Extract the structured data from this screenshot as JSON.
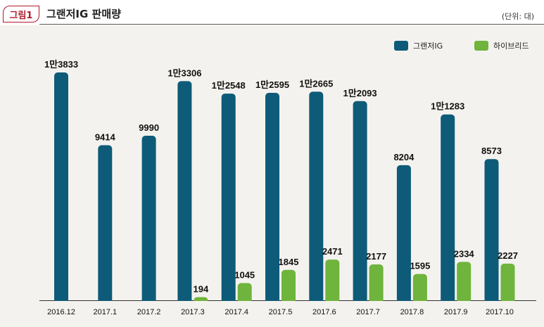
{
  "figure": {
    "badge": "그림1",
    "title": "그랜저IG 판매량",
    "unit": "(단위: 대)"
  },
  "chart_data": {
    "type": "bar",
    "categories": [
      "2016.12",
      "2017.1",
      "2017.2",
      "2017.3",
      "2017.4",
      "2017.5",
      "2017.6",
      "2017.7",
      "2017.8",
      "2017.9",
      "2017.10"
    ],
    "series": [
      {
        "name": "그랜저IG",
        "color": "#0d5b78",
        "values": [
          13833,
          9414,
          9990,
          13306,
          12548,
          12595,
          12665,
          12093,
          8204,
          11283,
          8573
        ],
        "labels": [
          "1만3833",
          "9414",
          "9990",
          "1만3306",
          "1만2548",
          "1만2595",
          "1만2665",
          "1만2093",
          "8204",
          "1만1283",
          "8573"
        ]
      },
      {
        "name": "하이브리드",
        "color": "#6fb43d",
        "values": [
          null,
          null,
          null,
          194,
          1045,
          1845,
          2471,
          2177,
          1595,
          2334,
          2227
        ],
        "labels": [
          "",
          "",
          "",
          "194",
          "1045",
          "1845",
          "2471",
          "2177",
          "1595",
          "2334",
          "2227"
        ]
      }
    ],
    "ylim": [
      0,
      14500
    ],
    "grid": false,
    "legend_position": "top-right"
  }
}
